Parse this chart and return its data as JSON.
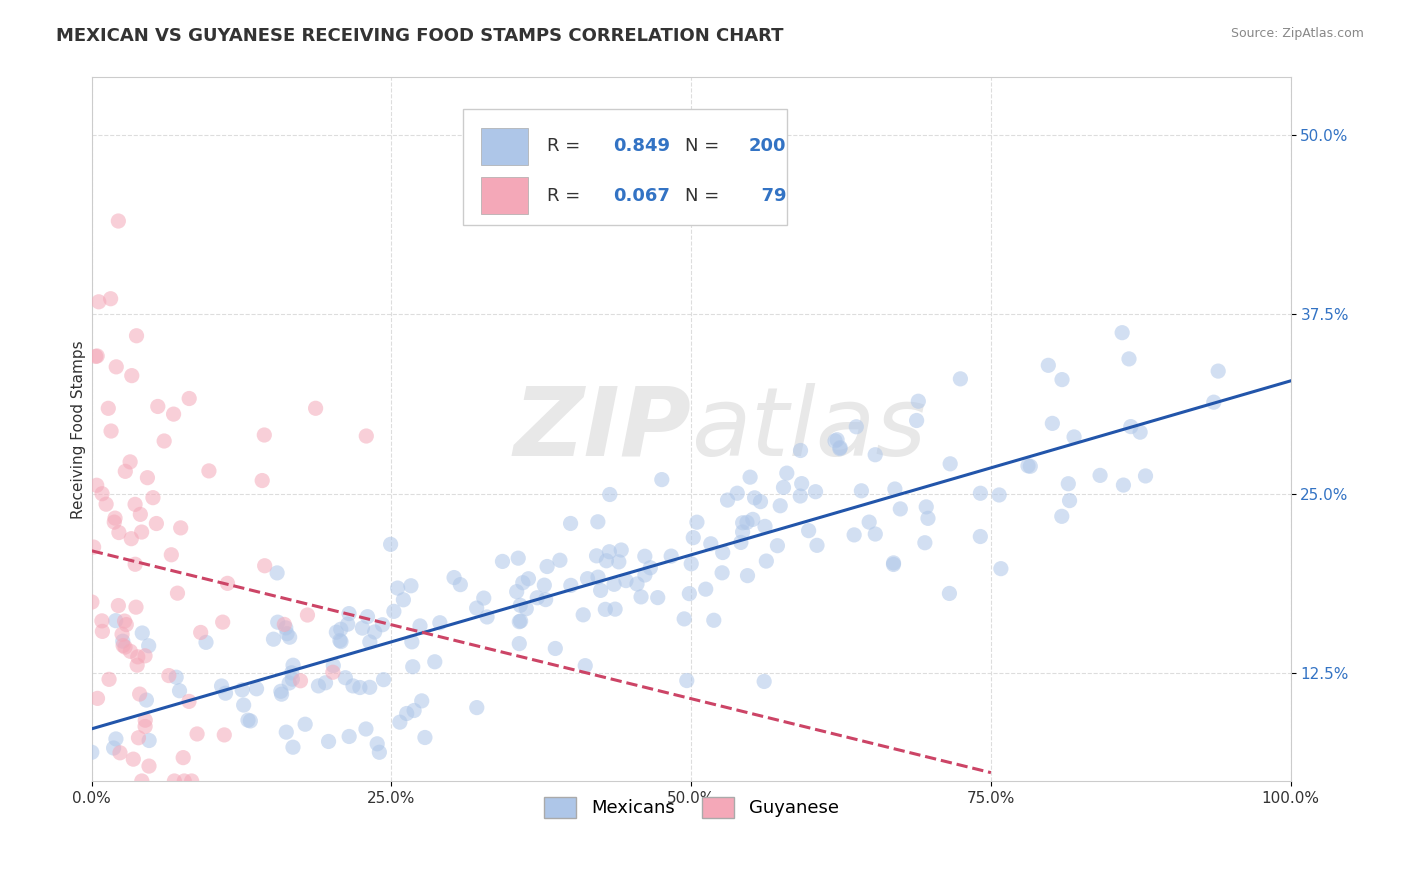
{
  "title": "MEXICAN VS GUYANESE RECEIVING FOOD STAMPS CORRELATION CHART",
  "source": "Source: ZipAtlas.com",
  "ylabel": "Receiving Food Stamps",
  "xlim": [
    0,
    100
  ],
  "ylim": [
    5,
    54
  ],
  "yticks": [
    12.5,
    25.0,
    37.5,
    50.0
  ],
  "xticks": [
    0,
    25,
    50,
    75,
    100
  ],
  "xtick_labels": [
    "0.0%",
    "25.0%",
    "50.0%",
    "75.0%",
    "100.0%"
  ],
  "ytick_labels": [
    "12.5%",
    "25.0%",
    "37.5%",
    "50.0%"
  ],
  "mexican_color": "#aec6e8",
  "guyanese_color": "#f4a8b8",
  "mexican_line_color": "#2255aa",
  "guyanese_line_color": "#cc4466",
  "R_mexican": 0.849,
  "N_mexican": 200,
  "R_guyanese": 0.067,
  "N_guyanese": 79,
  "watermark_zip": "ZIP",
  "watermark_atlas": "atlas",
  "background_color": "#ffffff",
  "grid_color": "#dddddd",
  "legend_label_mexican": "Mexicans",
  "legend_label_guyanese": "Guyanese",
  "title_fontsize": 13,
  "axis_label_fontsize": 11,
  "tick_fontsize": 11,
  "legend_fontsize": 13,
  "ytick_color": "#3373c4",
  "mexican_seed": 42,
  "guyanese_seed": 7,
  "dot_size": 120,
  "dot_alpha": 0.55,
  "line_width": 2.2
}
